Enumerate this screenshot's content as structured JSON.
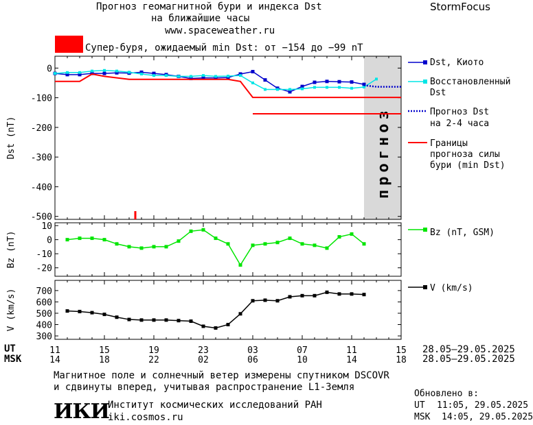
{
  "header": {
    "title_line1": "Прогноз геомагнитной бури и индекса Dst",
    "title_line2": "на ближайшие часы",
    "url": "www.spaceweather.ru",
    "brand": "StormFocus",
    "alert_color": "#ff0000",
    "alert_text": "Супер-буря, ожидаемый min Dst: от −154 до −99 nT"
  },
  "legend": {
    "dst_kyoto": "Dst, Киото",
    "dst_restored_1": "Восстановленный",
    "dst_restored_2": "Dst",
    "forecast_1": "Прогноз Dst",
    "forecast_2": "на 2-4 часа",
    "bounds_1": "Границы",
    "bounds_2": "прогноза силы",
    "bounds_3": "бури (min Dst)",
    "bz": "Bz (nT, GSM)",
    "v": "V (km/s)"
  },
  "prognosis_label": "прогноз",
  "time_axis": {
    "ut_label": "UT",
    "msk_label": "MSK",
    "ut_ticks": [
      "11",
      "15",
      "19",
      "23",
      "03",
      "07",
      "11",
      "15"
    ],
    "msk_ticks": [
      "14",
      "18",
      "22",
      "02",
      "06",
      "10",
      "14",
      "18"
    ],
    "ut_range": "28.05–29.05.2025",
    "msk_range": "28.05–29.05.2025"
  },
  "footer": {
    "note_line1": "Магнитное поле и солнечный ветер измерены спутником DSCOVR",
    "note_line2": "и сдвинуты вперед, учитывая распространение L1-Земля",
    "logo": "ИКИ",
    "institute": "Институт космических исследований РАН",
    "site": "iki.cosmos.ru",
    "updated_label": "Обновлено в:",
    "updated_ut_label": "UT",
    "updated_ut": "11:05, 29.05.2025",
    "updated_msk_label": "MSK",
    "updated_msk": "14:05, 29.05.2025"
  },
  "chart_data": [
    {
      "type": "line",
      "ylabel": "Dst (nT)",
      "ylim": [
        -510,
        40
      ],
      "yticks": [
        0,
        -100,
        -200,
        -300,
        -400,
        -500
      ],
      "xlim": [
        11,
        39
      ],
      "forecast_region": [
        36,
        39
      ],
      "series": [
        {
          "name": "Dst, Киото",
          "color": "#0000cc",
          "x": [
            11,
            12,
            13,
            14,
            15,
            16,
            17,
            18,
            19,
            20,
            21,
            22,
            23,
            24,
            25,
            26,
            27,
            28,
            29,
            30,
            31,
            32,
            33,
            34,
            35,
            36
          ],
          "y": [
            -18,
            -22,
            -22,
            -18,
            -18,
            -16,
            -17,
            -14,
            -18,
            -22,
            -28,
            -35,
            -33,
            -33,
            -32,
            -20,
            -12,
            -40,
            -68,
            -80,
            -62,
            -48,
            -45,
            -46,
            -47,
            -55
          ]
        },
        {
          "name": "Восстановленный Dst",
          "color": "#00e5e5",
          "x": [
            11,
            12,
            13,
            14,
            15,
            16,
            17,
            18,
            19,
            20,
            21,
            22,
            23,
            24,
            25,
            26,
            27,
            28,
            29,
            30,
            31,
            32,
            33,
            34,
            35,
            36,
            37
          ],
          "y": [
            -18,
            -15,
            -15,
            -10,
            -8,
            -10,
            -14,
            -20,
            -25,
            -25,
            -28,
            -28,
            -25,
            -28,
            -27,
            -25,
            -50,
            -72,
            -72,
            -72,
            -70,
            -65,
            -65,
            -65,
            -68,
            -64,
            -37
          ]
        },
        {
          "name": "Прогноз Dst на 2-4 часа",
          "color": "#0000cc",
          "x": [
            36,
            37,
            38,
            39
          ],
          "y": [
            -58,
            -63,
            -63,
            -63
          ]
        },
        {
          "name": "Границы прогноза силы бури (min Dst)",
          "color": "#ff0000",
          "x": [
            11,
            13,
            14,
            15,
            17,
            25,
            26,
            27,
            39
          ],
          "y": [
            -45,
            -45,
            -20,
            -28,
            -38,
            -38,
            -45,
            -99,
            -99
          ]
        },
        {
          "color": "#ff0000",
          "x": [
            27,
            39
          ],
          "y": [
            -154,
            -154
          ]
        }
      ],
      "marker_x": 17.5
    },
    {
      "type": "line",
      "ylabel": "Bz (nT)",
      "ylim": [
        -26,
        12
      ],
      "yticks": [
        10,
        0,
        -10,
        -20
      ],
      "series": [
        {
          "name": "Bz (nT, GSM)",
          "color": "#00e500",
          "x": [
            12,
            13,
            14,
            15,
            16,
            17,
            18,
            19,
            20,
            21,
            22,
            23,
            24,
            25,
            26,
            27,
            28,
            29,
            30,
            31,
            32,
            33,
            34,
            35,
            36,
            37
          ],
          "y": [
            0,
            1,
            1,
            0,
            -3,
            -5,
            -6,
            -5,
            -5,
            -1,
            6,
            7,
            1,
            -3,
            -18,
            -4,
            -3,
            -2,
            1,
            -3,
            -4,
            -6,
            2,
            4,
            -3,
            null
          ]
        }
      ]
    },
    {
      "type": "line",
      "ylabel": "V (km/s)",
      "ylim": [
        270,
        790
      ],
      "yticks": [
        700,
        600,
        500,
        400,
        300
      ],
      "series": [
        {
          "name": "V (km/s)",
          "color": "#000000",
          "x": [
            12,
            13,
            14,
            15,
            16,
            17,
            18,
            19,
            20,
            21,
            22,
            23,
            24,
            25,
            26,
            27,
            28,
            29,
            30,
            31,
            32,
            33,
            34,
            35,
            36,
            37
          ],
          "y": [
            520,
            515,
            505,
            490,
            465,
            445,
            440,
            440,
            440,
            435,
            430,
            385,
            370,
            400,
            495,
            610,
            615,
            610,
            645,
            655,
            655,
            685,
            670,
            670,
            665,
            null
          ]
        }
      ]
    }
  ]
}
